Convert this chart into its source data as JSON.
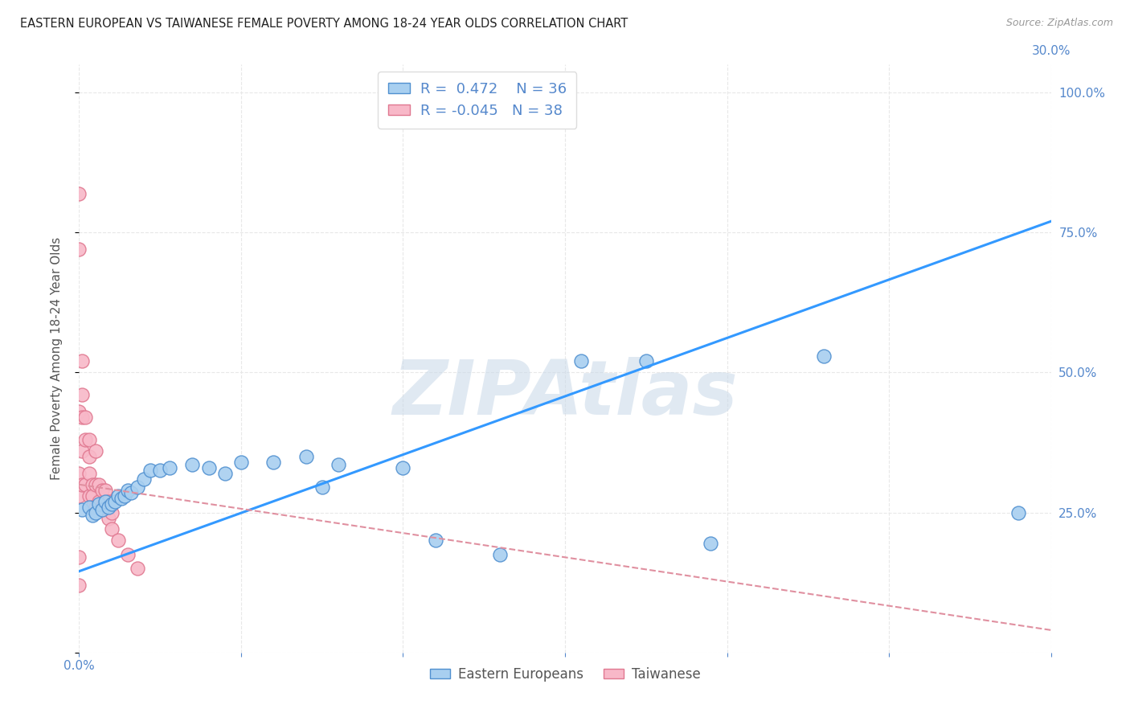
{
  "title": "EASTERN EUROPEAN VS TAIWANESE FEMALE POVERTY AMONG 18-24 YEAR OLDS CORRELATION CHART",
  "source": "Source: ZipAtlas.com",
  "ylabel": "Female Poverty Among 18-24 Year Olds",
  "xlim": [
    0.0,
    0.3
  ],
  "ylim": [
    0.0,
    1.05
  ],
  "xticks": [
    0.0,
    0.05,
    0.1,
    0.15,
    0.2,
    0.25,
    0.3
  ],
  "yticks": [
    0.0,
    0.25,
    0.5,
    0.75,
    1.0
  ],
  "ytick_labels": [
    "",
    "25.0%",
    "50.0%",
    "75.0%",
    "100.0%"
  ],
  "xtick_labels": [
    "0.0%",
    "",
    "",
    "",
    "",
    "",
    "30.0%"
  ],
  "background_color": "#ffffff",
  "watermark": "ZIPAtlas",
  "watermark_color": "#c8d8e8",
  "legend_r_blue": "0.472",
  "legend_n_blue": "36",
  "legend_r_pink": "-0.045",
  "legend_n_pink": "38",
  "blue_color": "#a8cff0",
  "pink_color": "#f8b8c8",
  "blue_edge_color": "#5090d0",
  "pink_edge_color": "#e07890",
  "blue_line_color": "#3399ff",
  "pink_line_color": "#e090a0",
  "grid_color": "#e8e8e8",
  "grid_linestyle": "--",
  "blue_scatter_x": [
    0.001,
    0.003,
    0.004,
    0.005,
    0.006,
    0.007,
    0.008,
    0.009,
    0.01,
    0.011,
    0.012,
    0.013,
    0.014,
    0.015,
    0.016,
    0.018,
    0.02,
    0.022,
    0.025,
    0.028,
    0.035,
    0.04,
    0.045,
    0.05,
    0.06,
    0.07,
    0.075,
    0.08,
    0.1,
    0.11,
    0.13,
    0.155,
    0.175,
    0.195,
    0.23,
    0.29
  ],
  "blue_scatter_y": [
    0.255,
    0.26,
    0.245,
    0.25,
    0.265,
    0.255,
    0.27,
    0.26,
    0.265,
    0.27,
    0.28,
    0.275,
    0.28,
    0.29,
    0.285,
    0.295,
    0.31,
    0.325,
    0.325,
    0.33,
    0.335,
    0.33,
    0.32,
    0.34,
    0.34,
    0.35,
    0.295,
    0.335,
    0.33,
    0.2,
    0.175,
    0.52,
    0.52,
    0.195,
    0.53,
    0.25
  ],
  "pink_scatter_x": [
    0.0,
    0.0,
    0.0,
    0.0,
    0.0,
    0.0,
    0.0,
    0.001,
    0.001,
    0.001,
    0.001,
    0.001,
    0.002,
    0.002,
    0.002,
    0.003,
    0.003,
    0.003,
    0.003,
    0.004,
    0.004,
    0.004,
    0.005,
    0.005,
    0.005,
    0.006,
    0.006,
    0.007,
    0.007,
    0.008,
    0.008,
    0.009,
    0.009,
    0.01,
    0.01,
    0.012,
    0.015,
    0.018
  ],
  "pink_scatter_y": [
    0.82,
    0.72,
    0.43,
    0.32,
    0.28,
    0.17,
    0.12,
    0.52,
    0.46,
    0.42,
    0.36,
    0.3,
    0.42,
    0.38,
    0.3,
    0.38,
    0.35,
    0.32,
    0.28,
    0.3,
    0.28,
    0.26,
    0.36,
    0.3,
    0.26,
    0.3,
    0.27,
    0.29,
    0.26,
    0.29,
    0.26,
    0.27,
    0.24,
    0.25,
    0.22,
    0.2,
    0.175,
    0.15
  ],
  "blue_line_x": [
    0.0,
    0.3
  ],
  "blue_line_y": [
    0.145,
    0.77
  ],
  "pink_line_x": [
    0.0,
    0.3
  ],
  "pink_line_y": [
    0.3,
    0.04
  ],
  "axis_label_color": "#555555",
  "tick_color": "#5588cc"
}
